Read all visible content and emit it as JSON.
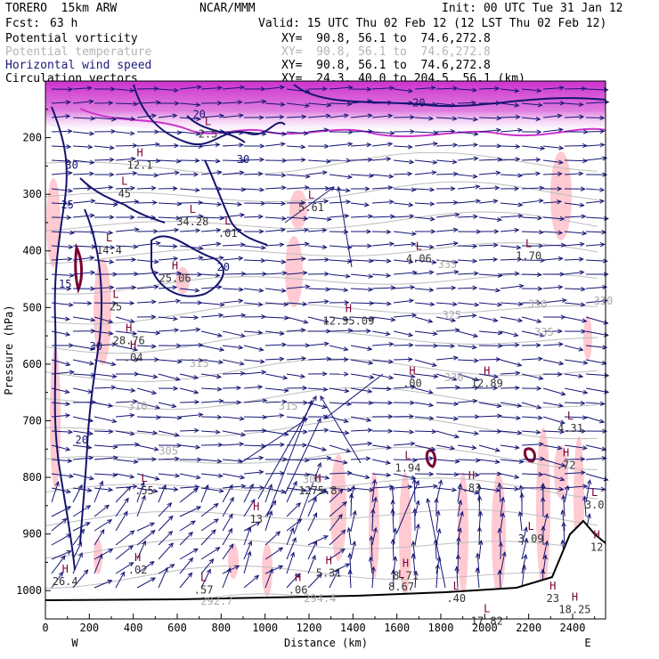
{
  "header": {
    "model": "TORERO  15km ARW",
    "center": "NCAR/MMM",
    "init": "Init: 00 UTC Tue 31 Jan 12",
    "fcst_label": "Fcst:",
    "fcst_value": "63 h",
    "valid": "Valid: 15 UTC Thu 02 Feb 12 (12 LST Thu 02 Feb 12)"
  },
  "fields": [
    {
      "name": "Potential vorticity",
      "xy": "XY=  90.8, 56.1 to  74.6,272.8",
      "color": "#000000"
    },
    {
      "name": "Potential temperature",
      "xy": "XY=  90.8, 56.1 to  74.6,272.8",
      "color": "#b4b4b4"
    },
    {
      "name": "Horizontal wind speed",
      "xy": "XY=  90.8, 56.1 to  74.6,272.8",
      "color": "#1a1a7a"
    },
    {
      "name": "Circulation vectors",
      "xy": "XY=  24.3, 40.0 to 204.5, 56.1 (km)",
      "color": "#000000"
    }
  ],
  "chart_data": {
    "type": "cross-section",
    "xlabel": "Distance (km)",
    "ylabel": "Pressure (hPa)",
    "xlim": [
      0,
      2550
    ],
    "ylim": [
      1050,
      100
    ],
    "x_ticks": [
      0,
      200,
      400,
      600,
      800,
      1000,
      1200,
      1400,
      1600,
      1800,
      2000,
      2200,
      2400
    ],
    "y_ticks": [
      200,
      300,
      400,
      500,
      600,
      700,
      800,
      900,
      1000
    ],
    "x_left_end": "W",
    "x_right_end": "E",
    "theta_labels": [
      {
        "text": "292.7",
        "x": 780,
        "p": 1025
      },
      {
        "text": "294.4",
        "x": 1250,
        "p": 1020
      },
      {
        "text": "300",
        "x": 1215,
        "p": 810
      },
      {
        "text": "305",
        "x": 560,
        "p": 760
      },
      {
        "text": "310",
        "x": 420,
        "p": 680
      },
      {
        "text": "315",
        "x": 1105,
        "p": 680
      },
      {
        "text": "315",
        "x": 700,
        "p": 605
      },
      {
        "text": "320",
        "x": 1860,
        "p": 630
      },
      {
        "text": "325",
        "x": 1850,
        "p": 520
      },
      {
        "text": "330",
        "x": 2240,
        "p": 500
      },
      {
        "text": "330",
        "x": 2540,
        "p": 495
      },
      {
        "text": "335",
        "x": 1830,
        "p": 430
      },
      {
        "text": "335",
        "x": 2270,
        "p": 550
      }
    ],
    "wind_labels": [
      {
        "text": "20",
        "x": 700,
        "p": 165
      },
      {
        "text": "20",
        "x": 1700,
        "p": 145
      },
      {
        "text": "30",
        "x": 120,
        "p": 255
      },
      {
        "text": "30",
        "x": 900,
        "p": 245
      },
      {
        "text": "25",
        "x": 100,
        "p": 325
      },
      {
        "text": "15",
        "x": 90,
        "p": 465
      },
      {
        "text": "20",
        "x": 810,
        "p": 435
      },
      {
        "text": "30",
        "x": 230,
        "p": 575
      },
      {
        "text": "20",
        "x": 165,
        "p": 740
      }
    ],
    "extrema": [
      {
        "type": "L",
        "x": 740,
        "p": 200,
        "value": "2.5"
      },
      {
        "type": "H",
        "x": 430,
        "p": 255,
        "value": "12.1"
      },
      {
        "type": "L",
        "x": 360,
        "p": 305,
        "value": "45"
      },
      {
        "type": "L",
        "x": 1210,
        "p": 330,
        "value": "5.61"
      },
      {
        "type": "L",
        "x": 670,
        "p": 355,
        "value": "34.28"
      },
      {
        "type": "L",
        "x": 830,
        "p": 375,
        "value": ".01"
      },
      {
        "type": "L",
        "x": 290,
        "p": 405,
        "value": "14.4"
      },
      {
        "type": "H",
        "x": 590,
        "p": 455,
        "value": "25.06"
      },
      {
        "type": "L",
        "x": 1700,
        "p": 420,
        "value": "4.06"
      },
      {
        "type": "L",
        "x": 2200,
        "p": 415,
        "value": "1.70"
      },
      {
        "type": "L",
        "x": 320,
        "p": 505,
        "value": "25"
      },
      {
        "type": "H",
        "x": 1380,
        "p": 530,
        "value": "12.55.09"
      },
      {
        "type": "H",
        "x": 380,
        "p": 565,
        "value": "28.76"
      },
      {
        "type": "H",
        "x": 400,
        "p": 595,
        "value": ".04"
      },
      {
        "type": "H",
        "x": 1670,
        "p": 640,
        "value": ".00"
      },
      {
        "type": "H",
        "x": 2010,
        "p": 640,
        "value": "12.89"
      },
      {
        "type": "L",
        "x": 2390,
        "p": 720,
        "value": "4.31"
      },
      {
        "type": "L",
        "x": 1650,
        "p": 790,
        "value": "1.94"
      },
      {
        "type": "H",
        "x": 2370,
        "p": 785,
        "value": ".72"
      },
      {
        "type": "L",
        "x": 450,
        "p": 830,
        "value": ".55"
      },
      {
        "type": "H",
        "x": 1240,
        "p": 830,
        "value": "1275.8"
      },
      {
        "type": "H",
        "x": 1940,
        "p": 825,
        "value": ".83"
      },
      {
        "type": "L",
        "x": 2500,
        "p": 855,
        "value": "3.0"
      },
      {
        "type": "H",
        "x": 960,
        "p": 880,
        "value": "13"
      },
      {
        "type": "L",
        "x": 2210,
        "p": 915,
        "value": "3.09"
      },
      {
        "type": "H",
        "x": 2510,
        "p": 930,
        "value": "12"
      },
      {
        "type": "H",
        "x": 420,
        "p": 970,
        "value": ".02"
      },
      {
        "type": "H",
        "x": 1290,
        "p": 975,
        "value": "5.31"
      },
      {
        "type": "H",
        "x": 1640,
        "p": 980,
        "value": "8.71"
      },
      {
        "type": "H",
        "x": 90,
        "p": 990,
        "value": "26.4"
      },
      {
        "type": "L",
        "x": 720,
        "p": 1005,
        "value": ".57"
      },
      {
        "type": "H",
        "x": 1150,
        "p": 1005,
        "value": ".06"
      },
      {
        "type": "L",
        "x": 1620,
        "p": 1000,
        "value": "8.67"
      },
      {
        "type": "L",
        "x": 1870,
        "p": 1020,
        "value": ".40"
      },
      {
        "type": "H",
        "x": 2310,
        "p": 1020,
        "value": "23"
      },
      {
        "type": "H",
        "x": 2410,
        "p": 1040,
        "value": "18.25"
      },
      {
        "type": "L",
        "x": 2010,
        "p": 1060,
        "value": "17.82"
      }
    ]
  }
}
